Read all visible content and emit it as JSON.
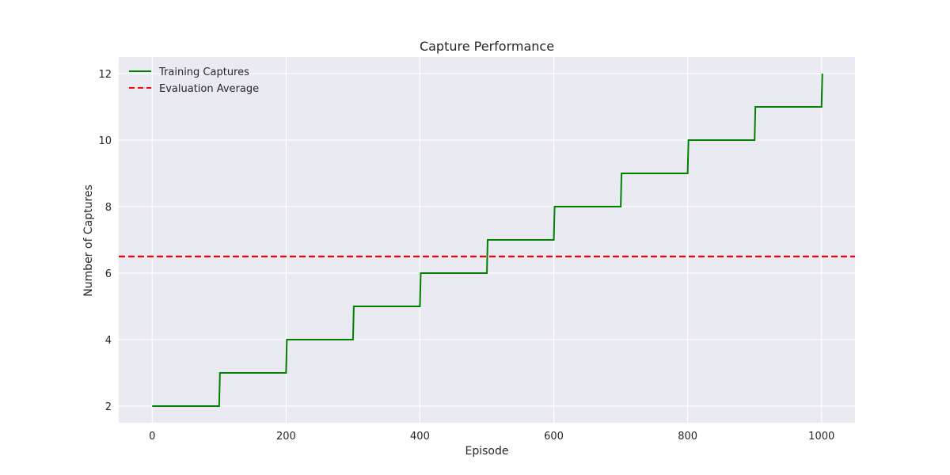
{
  "chart_data": {
    "type": "line",
    "title": "Capture Performance",
    "xlabel": "Episode",
    "ylabel": "Number of Captures",
    "xlim": [
      -50,
      1050
    ],
    "ylim": [
      1.5,
      12.5
    ],
    "x_ticks": [
      0,
      200,
      400,
      600,
      800,
      1000
    ],
    "y_ticks": [
      2,
      4,
      6,
      8,
      10,
      12
    ],
    "grid": true,
    "background": "#EAEAF2",
    "legend_position": "top-left",
    "series": [
      {
        "name": "Training Captures",
        "color": "#008000",
        "style": "solid",
        "step_x": [
          0,
          100,
          200,
          300,
          400,
          500,
          600,
          700,
          800,
          900,
          1000
        ],
        "step_y": [
          2,
          3,
          4,
          5,
          6,
          7,
          8,
          9,
          10,
          11,
          12
        ]
      },
      {
        "name": "Evaluation Average",
        "color": "#FF0000",
        "style": "dashed",
        "hline_y": 6.5
      }
    ]
  }
}
